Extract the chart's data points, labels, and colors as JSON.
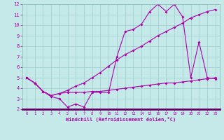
{
  "xlabel": "Windchill (Refroidissement éolien,°C)",
  "bg_color": "#c5e8e8",
  "line_color": "#aa00aa",
  "grid_color": "#9ecece",
  "xlim": [
    -0.5,
    23.5
  ],
  "ylim": [
    2,
    12
  ],
  "xticks": [
    0,
    1,
    2,
    3,
    4,
    5,
    6,
    7,
    8,
    9,
    10,
    11,
    12,
    13,
    14,
    15,
    16,
    17,
    18,
    19,
    20,
    21,
    22,
    23
  ],
  "yticks": [
    2,
    3,
    4,
    5,
    6,
    7,
    8,
    9,
    10,
    11,
    12
  ],
  "line1_x": [
    0,
    1,
    2,
    3,
    4,
    5,
    6,
    7,
    8,
    9,
    10,
    11,
    12,
    13,
    14,
    15,
    16,
    17,
    18,
    19,
    20,
    21,
    22,
    23
  ],
  "line1_y": [
    5.0,
    4.5,
    3.7,
    3.2,
    3.0,
    2.2,
    2.5,
    2.2,
    3.6,
    3.6,
    3.6,
    7.0,
    9.4,
    9.6,
    10.1,
    11.3,
    12.0,
    11.3,
    12.0,
    10.8,
    5.0,
    8.4,
    5.0,
    4.9
  ],
  "line2_x": [
    0,
    1,
    2,
    3,
    4,
    5,
    6,
    7,
    8,
    9,
    10,
    11,
    12,
    13,
    14,
    15,
    16,
    17,
    18,
    19,
    20,
    21,
    22,
    23
  ],
  "line2_y": [
    5.0,
    4.5,
    3.7,
    3.3,
    3.5,
    3.8,
    4.2,
    4.5,
    5.0,
    5.5,
    6.1,
    6.7,
    7.2,
    7.6,
    8.0,
    8.5,
    9.0,
    9.4,
    9.8,
    10.2,
    10.7,
    11.0,
    11.3,
    11.5
  ],
  "line3_x": [
    0,
    1,
    2,
    3,
    4,
    5,
    6,
    7,
    8,
    9,
    10,
    11,
    12,
    13,
    14,
    15,
    16,
    17,
    18,
    19,
    20,
    21,
    22,
    23
  ],
  "line3_y": [
    5.0,
    4.5,
    3.7,
    3.3,
    3.5,
    3.6,
    3.6,
    3.6,
    3.7,
    3.7,
    3.8,
    3.9,
    4.0,
    4.1,
    4.2,
    4.3,
    4.4,
    4.5,
    4.5,
    4.6,
    4.7,
    4.8,
    4.9,
    5.0
  ]
}
